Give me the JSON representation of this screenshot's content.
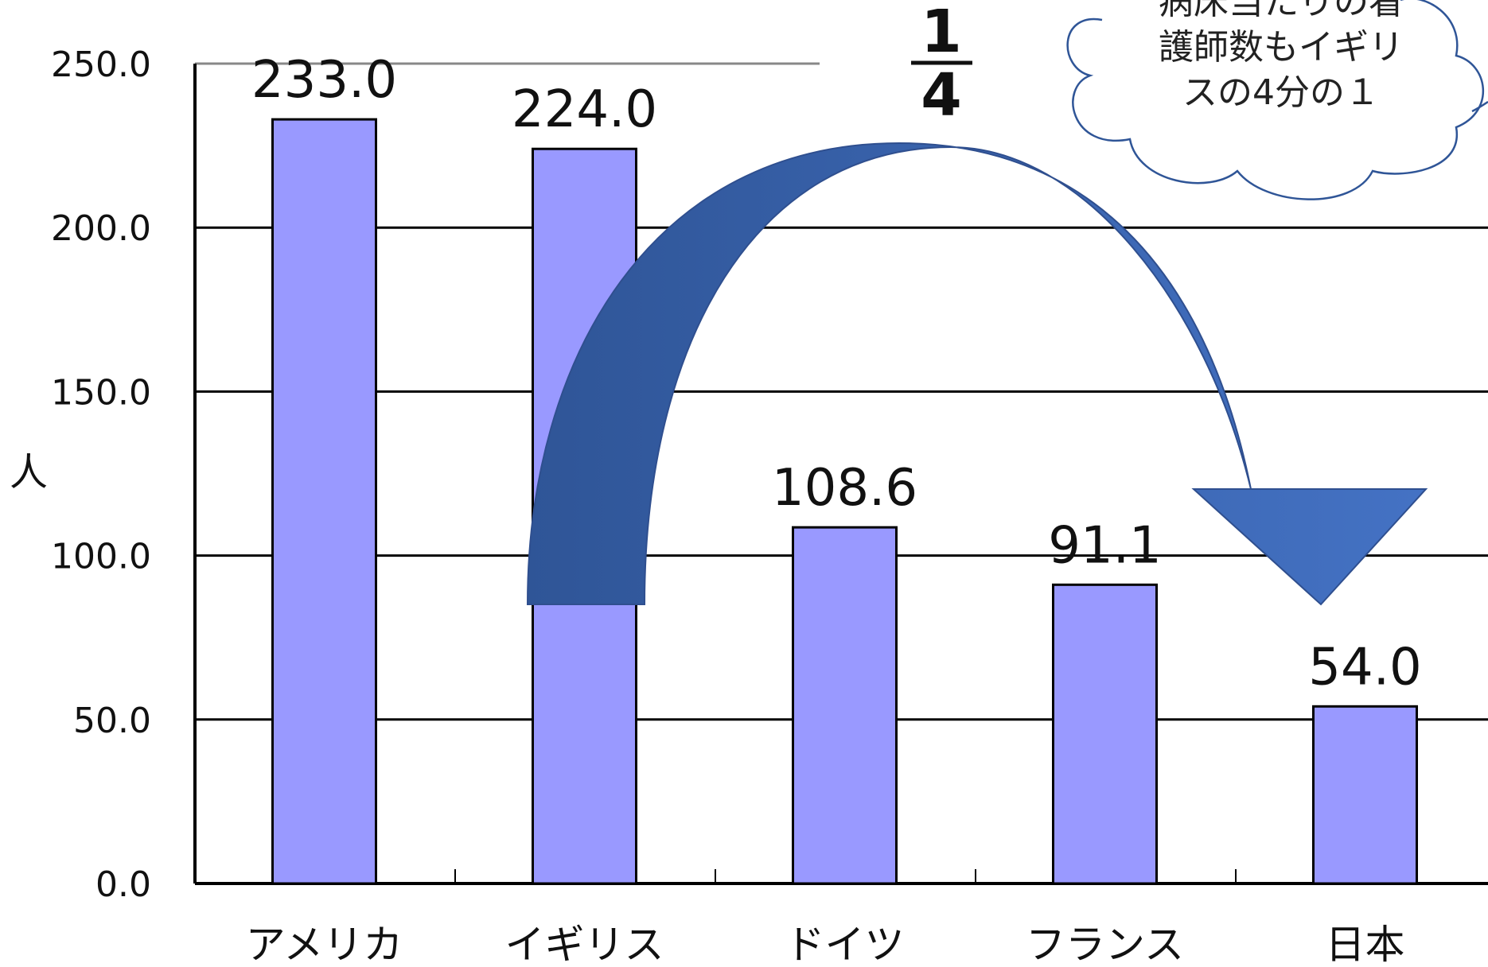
{
  "chart_data": {
    "type": "bar",
    "categories": [
      "アメリカ",
      "イギリス",
      "ドイツ",
      "フランス",
      "日本"
    ],
    "values": [
      233.0,
      224.0,
      108.6,
      91.1,
      54.0
    ],
    "data_labels": [
      "233.0",
      "224.0",
      "108.6",
      "91.1",
      "54.0"
    ],
    "ylabel": "人",
    "ylim": [
      0,
      250
    ],
    "yticks": [
      "0.0",
      "50.0",
      "100.0",
      "150.0",
      "200.0",
      "250.0"
    ],
    "grid": true,
    "bar_color": "#9999FF",
    "arrow_color": "#3A5FA8",
    "annotations": {
      "fraction_numerator": "1",
      "fraction_denominator": "4",
      "callout_lines": [
        "病床当たりの看",
        "護師数もイギリ",
        "スの4分の１"
      ]
    }
  }
}
